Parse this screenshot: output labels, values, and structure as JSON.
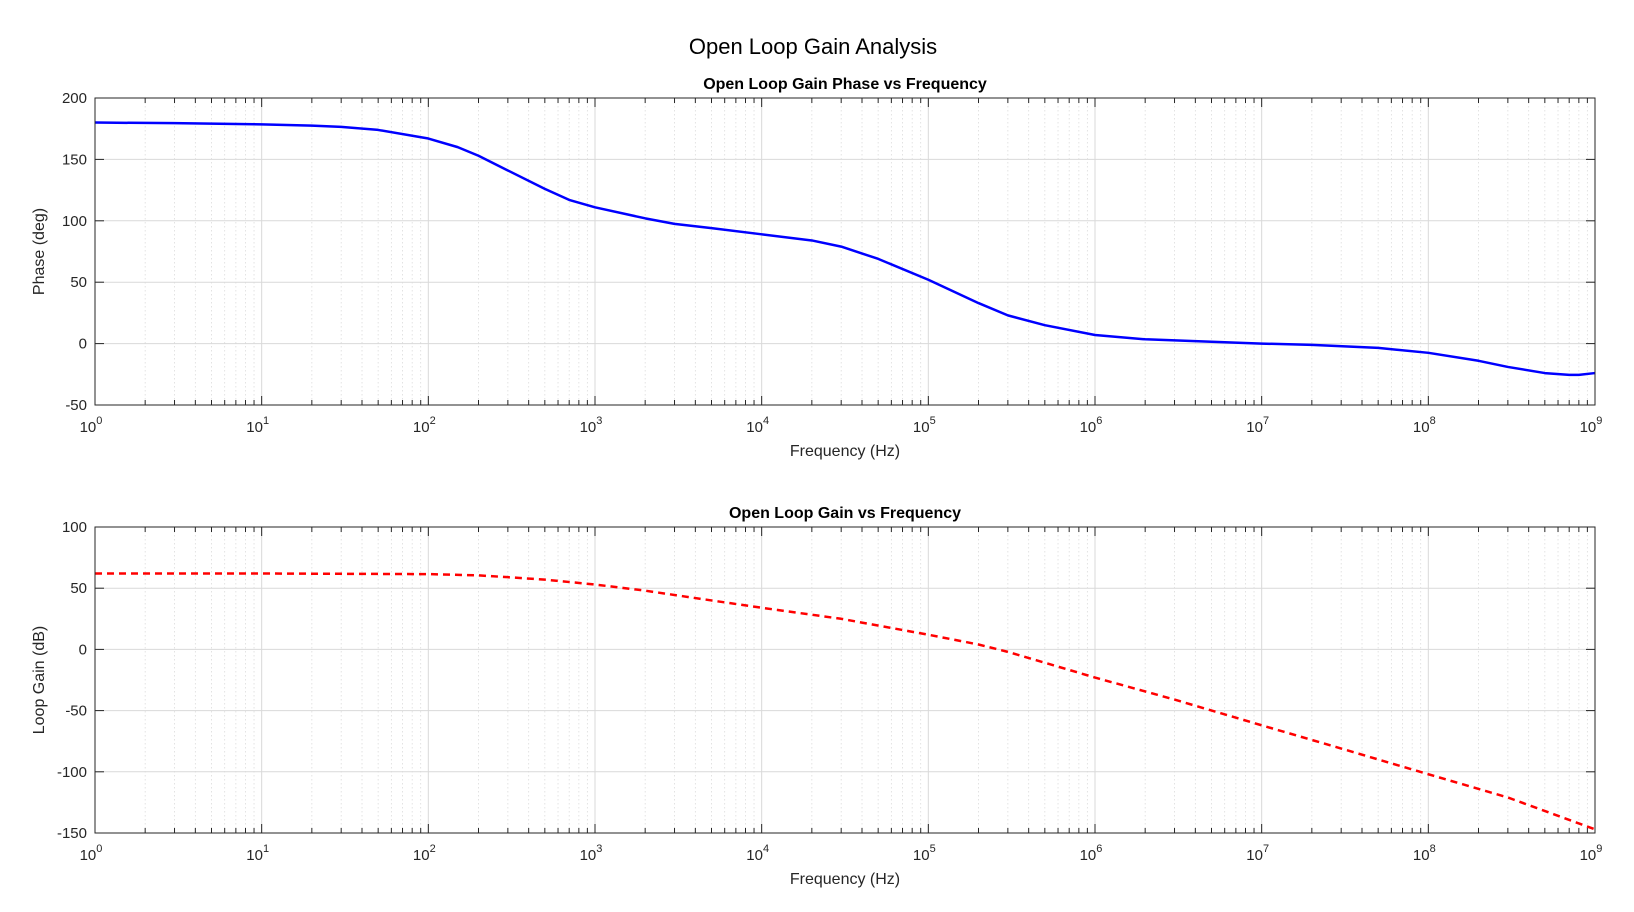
{
  "figure": {
    "title": "Open Loop Gain Analysis"
  },
  "chart_data": [
    {
      "type": "line",
      "title": "Open Loop Gain Phase vs Frequency",
      "xlabel": "Frequency (Hz)",
      "ylabel": "Phase (deg)",
      "xscale": "log",
      "xlim": [
        1,
        1000000000
      ],
      "ylim": [
        -50,
        200
      ],
      "xticks": [
        "10^0",
        "10^1",
        "10^2",
        "10^3",
        "10^4",
        "10^5",
        "10^6",
        "10^7",
        "10^8",
        "10^9"
      ],
      "yticks": [
        "200",
        "150",
        "100",
        "50",
        "0",
        "-50"
      ],
      "grid": true,
      "series": [
        {
          "color": "#0000ff",
          "style": "solid",
          "x": [
            1,
            3,
            10,
            20,
            30,
            50,
            100,
            150,
            200,
            300,
            500,
            700,
            1000,
            2000,
            3000,
            5000,
            10000,
            20000,
            30000,
            50000,
            100000,
            200000,
            300000,
            500000,
            1000000,
            2000000,
            5000000,
            10000000,
            20000000,
            50000000,
            100000000,
            200000000,
            300000000,
            500000000,
            700000000,
            800000000,
            1000000000
          ],
          "y": [
            180,
            179.5,
            178.5,
            177.5,
            176.5,
            174,
            167,
            160,
            153,
            141,
            126,
            117,
            111,
            102,
            97.5,
            94,
            89,
            84,
            79,
            69,
            52,
            33,
            23,
            15,
            7,
            3.5,
            1.5,
            0,
            -1,
            -3.5,
            -7.5,
            -14,
            -19,
            -24,
            -25.5,
            -25.5,
            -24
          ]
        }
      ]
    },
    {
      "type": "line",
      "title": "Open Loop Gain vs Frequency",
      "xlabel": "Frequency (Hz)",
      "ylabel": "Loop Gain (dB)",
      "xscale": "log",
      "xlim": [
        1,
        1000000000
      ],
      "ylim": [
        -150,
        100
      ],
      "xticks": [
        "10^0",
        "10^1",
        "10^2",
        "10^3",
        "10^4",
        "10^5",
        "10^6",
        "10^7",
        "10^8",
        "10^9"
      ],
      "yticks": [
        "100",
        "50",
        "0",
        "-50",
        "-100",
        "-150"
      ],
      "grid": true,
      "series": [
        {
          "color": "#ff0000",
          "style": "dashed",
          "x": [
            1,
            10,
            100,
            200,
            300,
            500,
            1000,
            2000,
            5000,
            10000,
            30000,
            100000,
            200000,
            300000,
            1000000,
            3000000,
            10000000,
            30000000,
            100000000,
            300000000,
            1000000000
          ],
          "y": [
            62,
            62,
            61.5,
            60.5,
            59,
            57,
            53,
            48,
            40,
            34,
            25,
            12,
            4,
            -2,
            -23,
            -41,
            -62,
            -81,
            -102,
            -121,
            -147
          ]
        }
      ]
    }
  ]
}
